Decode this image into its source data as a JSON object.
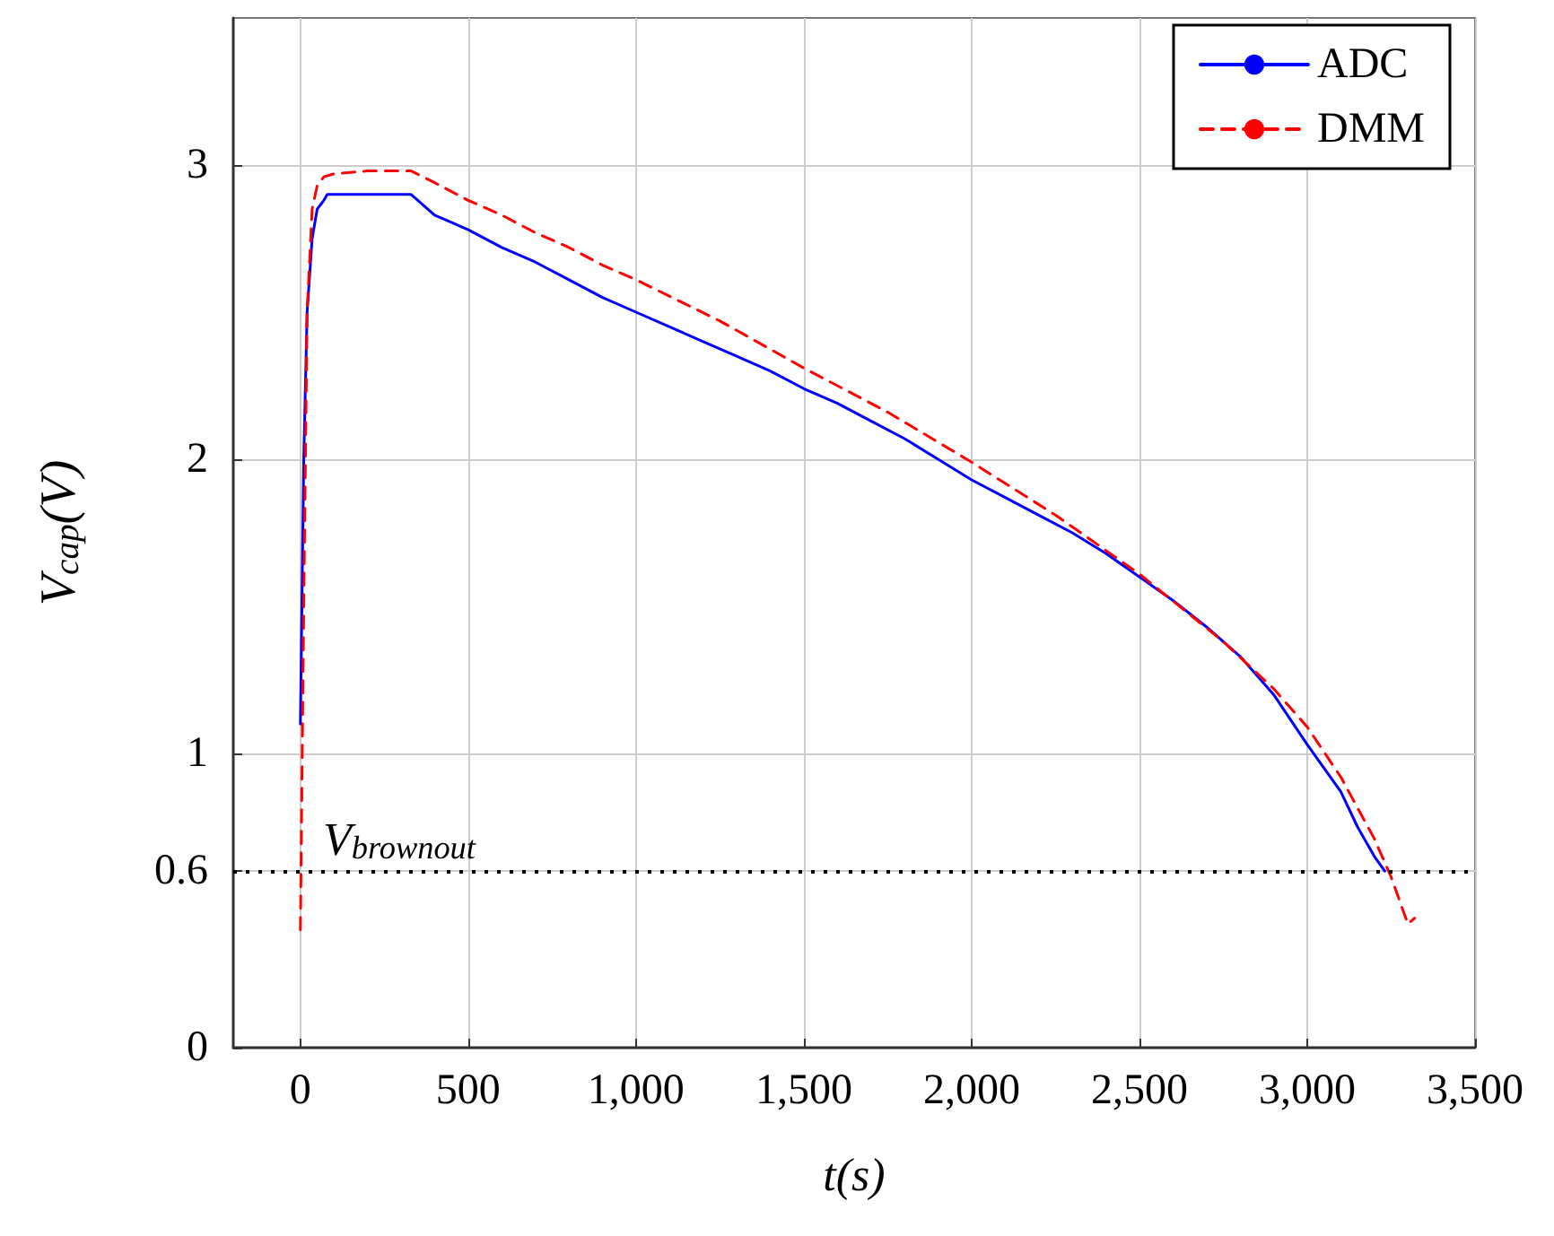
{
  "chart_data": {
    "type": "line",
    "xlabel": "t(s)",
    "ylabel": "V$_{cap}$(V)",
    "series": [
      {
        "name": "ADC",
        "color": "#0000ff",
        "line_style": "solid",
        "x": [
          0,
          10,
          20,
          35,
          50,
          70,
          80,
          150,
          250,
          330,
          400,
          500,
          600,
          700,
          800,
          900,
          1000,
          1100,
          1200,
          1300,
          1400,
          1500,
          1600,
          1700,
          1800,
          1900,
          2000,
          2100,
          2200,
          2300,
          2400,
          2500,
          2600,
          2700,
          2750,
          2800,
          2900,
          3000,
          3050,
          3100,
          3150,
          3200,
          3231
        ],
        "values": [
          1.1,
          2.0,
          2.5,
          2.75,
          2.85,
          2.88,
          2.9,
          2.9,
          2.9,
          2.9,
          2.83,
          2.78,
          2.72,
          2.67,
          2.61,
          2.55,
          2.5,
          2.45,
          2.4,
          2.35,
          2.3,
          2.24,
          2.19,
          2.13,
          2.07,
          2.0,
          1.93,
          1.87,
          1.81,
          1.75,
          1.68,
          1.6,
          1.52,
          1.43,
          1.38,
          1.33,
          1.2,
          1.03,
          0.95,
          0.87,
          0.75,
          0.65,
          0.6
        ]
      },
      {
        "name": "DMM",
        "color": "#ff0000",
        "line_style": "dashed",
        "x": [
          0,
          10,
          20,
          35,
          50,
          70,
          100,
          200,
          330,
          400,
          500,
          600,
          700,
          800,
          900,
          1000,
          1250,
          1500,
          1750,
          2000,
          2250,
          2500,
          2750,
          2900,
          3000,
          3100,
          3200,
          3250,
          3300,
          3320
        ],
        "values": [
          0.4,
          1.5,
          2.5,
          2.85,
          2.93,
          2.96,
          2.97,
          2.98,
          2.98,
          2.94,
          2.88,
          2.83,
          2.77,
          2.72,
          2.66,
          2.61,
          2.47,
          2.31,
          2.16,
          1.99,
          1.81,
          1.61,
          1.38,
          1.22,
          1.09,
          0.92,
          0.71,
          0.58,
          0.42,
          0.44
        ]
      }
    ],
    "xlim": [
      -200,
      3500
    ],
    "xticks": [
      0,
      500,
      {
        "value": 1000,
        "label": "1,000"
      },
      {
        "value": 1500,
        "label": "1,500"
      },
      {
        "value": 2000,
        "label": "2,000"
      },
      {
        "value": 2500,
        "label": "2,500"
      },
      {
        "value": 3000,
        "label": "3,000"
      },
      {
        "value": 3500,
        "label": "3,500"
      }
    ],
    "ylim": [
      0,
      3.5
    ],
    "yticks": [
      0,
      0.6,
      1,
      2,
      3
    ],
    "ref_lines": [
      {
        "axis": "y",
        "value": 0.6,
        "label": "V$_{brownout}$",
        "color": "#000000",
        "line_style": "dotted"
      }
    ],
    "grid": true,
    "legend": "top right",
    "marker": "none"
  }
}
